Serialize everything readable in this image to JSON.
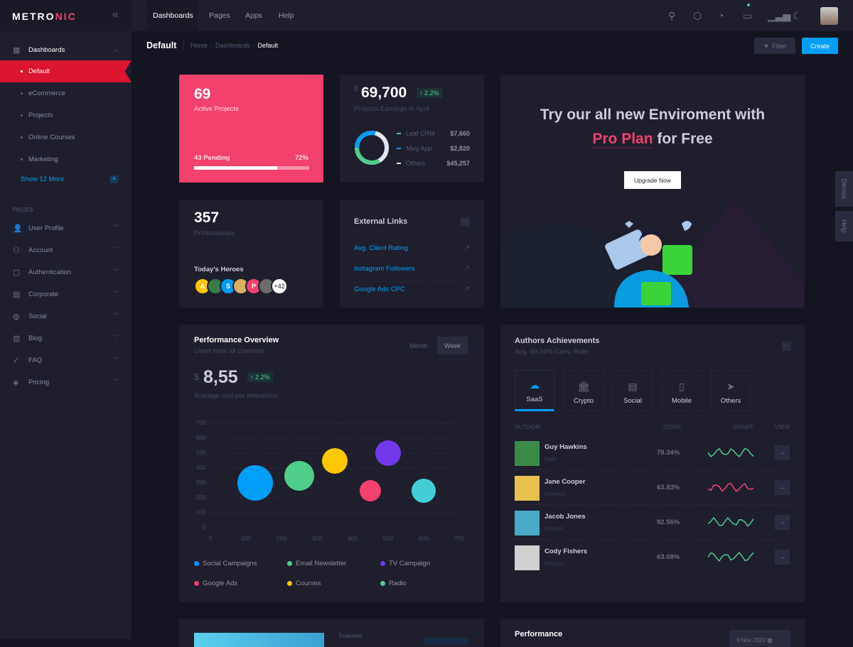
{
  "brand": {
    "logo_a": "METRO",
    "logo_b": "NIC"
  },
  "colors": {
    "accent": "#009ef7",
    "danger": "#f1416c",
    "success": "#50cd89",
    "active_nav": "#db1430",
    "bg": "#151521",
    "card": "#1e1e2d"
  },
  "header": {
    "tabs": [
      "Dashboards",
      "Pages",
      "Apps",
      "Help"
    ],
    "icons": [
      "search-icon",
      "cube-icon",
      "notification-icon",
      "chat-icon",
      "chart-bar-icon",
      "moon-icon"
    ]
  },
  "toolbar": {
    "title": "Default",
    "breadcrumb": [
      "Home",
      "Dashboards",
      "Default"
    ],
    "filter_label": "Filter",
    "create_label": "Create"
  },
  "sidebar": {
    "dashboards_label": "Dashboards",
    "sub_items": [
      "Default",
      "eCommerce",
      "Projects",
      "Online Courses",
      "Marketing"
    ],
    "show_more": "Show 12 More",
    "section": "PAGES",
    "pages": [
      {
        "label": "User Profile",
        "icon": "user-profile-icon"
      },
      {
        "label": "Account",
        "icon": "user-icon"
      },
      {
        "label": "Authentication",
        "icon": "note-icon"
      },
      {
        "label": "Corporate",
        "icon": "document-icon"
      },
      {
        "label": "Social",
        "icon": "globe-icon"
      },
      {
        "label": "Blog",
        "icon": "file-icon"
      },
      {
        "label": "FAQ",
        "icon": "badge-check-icon"
      },
      {
        "label": "Pricing",
        "icon": "tag-icon"
      }
    ]
  },
  "active_projects": {
    "value": "69",
    "label": "Active Projects",
    "pending": "43 Pending",
    "percent_label": "72%",
    "progress": 72
  },
  "earnings": {
    "currency": "$",
    "value": "69,700",
    "badge": "2.2%",
    "label": "Projects Earnings in April",
    "items": [
      {
        "name": "Leaf CRM",
        "value": "$7,660",
        "color": "#50cd89"
      },
      {
        "name": "Mivy App",
        "value": "$2,820",
        "color": "#009ef7"
      },
      {
        "name": "Others",
        "value": "$45,257",
        "color": "#e4e6ef"
      }
    ]
  },
  "professionals": {
    "value": "357",
    "label": "Professionals",
    "heroes_label": "Today’s Heroes",
    "avatars": [
      {
        "letter": "A",
        "color": "#ffc700"
      },
      {
        "letter": "",
        "color": "#3a7a4a"
      },
      {
        "letter": "S",
        "color": "#009ef7"
      },
      {
        "letter": "",
        "color": "#d9b060"
      },
      {
        "letter": "P",
        "color": "#f1416c"
      },
      {
        "letter": "",
        "color": "#6b6b6b"
      }
    ],
    "more": "+42"
  },
  "external_links": {
    "title": "External Links",
    "links": [
      "Avg. Client Rating",
      "Instagram Followers",
      "Google Ads CPC"
    ]
  },
  "promo": {
    "line1": "Try our all new Enviroment with",
    "highlight": "Pro Plan",
    "line2_rest": "for Free",
    "button": "Upgrade Now"
  },
  "side_tabs": [
    "Demos",
    "Help"
  ],
  "performance": {
    "title": "Performance Overview",
    "subtitle": "Users from all channels",
    "tabs": [
      "Month",
      "Week"
    ],
    "active_tab": "Week",
    "currency": "$",
    "value": "8,55",
    "badge": "2.2%",
    "caption": "Avarage cost per interaction"
  },
  "chart_data": {
    "type": "scatter",
    "title": "",
    "xlabel": "",
    "ylabel": "",
    "xlim": [
      0,
      700
    ],
    "ylim": [
      0,
      700
    ],
    "grid": true,
    "legend_placement": "bottom",
    "x_ticks": [
      "0",
      "100",
      "200",
      "300",
      "400",
      "500",
      "600",
      "700"
    ],
    "y_ticks": [
      "700",
      "600",
      "500",
      "400",
      "300",
      "200",
      "100",
      "0"
    ],
    "series": [
      {
        "name": "Social Campaigns",
        "color": "#009ef7",
        "x": 125,
        "y": 300,
        "z": 50
      },
      {
        "name": "Email Newsletter",
        "color": "#50cd89",
        "x": 250,
        "y": 350,
        "z": 42
      },
      {
        "name": "TV Campaign",
        "color": "#7239ea",
        "x": 500,
        "y": 500,
        "z": 36
      },
      {
        "name": "Google Ads",
        "color": "#f1416c",
        "x": 450,
        "y": 250,
        "z": 30
      },
      {
        "name": "Courses",
        "color": "#ffc700",
        "x": 350,
        "y": 450,
        "z": 36
      },
      {
        "name": "Radio",
        "color": "#50cd89",
        "point_color": "#43ced7",
        "x": 600,
        "y": 250,
        "z": 34
      }
    ]
  },
  "authors": {
    "title": "Authors Achievements",
    "subtitle": "Avg. 69.34% Conv. Rate",
    "tabs": [
      {
        "label": "SaaS",
        "icon": "cloud-icon"
      },
      {
        "label": "Crypto",
        "icon": "bank-icon"
      },
      {
        "label": "Social",
        "icon": "browser-icon"
      },
      {
        "label": "Mobile",
        "icon": "mobile-icon"
      },
      {
        "label": "Others",
        "icon": "send-icon"
      }
    ],
    "columns": [
      "AUTHOR",
      "CONV.",
      "CHART",
      "VIEW"
    ],
    "rows": [
      {
        "name": "Guy Hawkins",
        "country": "Haiti",
        "conv": "78.34%",
        "color": "#50cd89",
        "avatar": "#3b8a4a"
      },
      {
        "name": "Jane Cooper",
        "country": "Monaco",
        "conv": "63.83%",
        "color": "#f1416c",
        "avatar": "#e8c050"
      },
      {
        "name": "Jacob Jones",
        "country": "Poland",
        "conv": "92.56%",
        "color": "#50cd89",
        "avatar": "#4aa8c8"
      },
      {
        "name": "Cody Fishers",
        "country": "Mexico",
        "conv": "63.08%",
        "color": "#50cd89",
        "avatar": "#d0d0d0"
      }
    ]
  },
  "bottom": {
    "featured": "Featured",
    "performance_title": "Performance",
    "date": "3 Nov 2020"
  }
}
